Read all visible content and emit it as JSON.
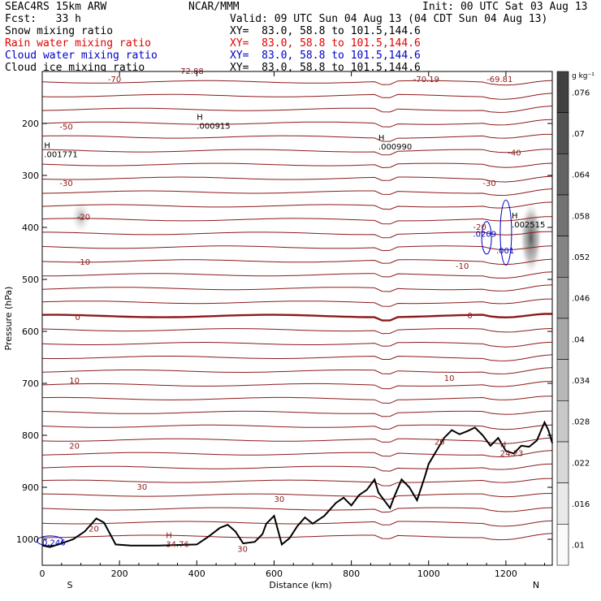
{
  "header": {
    "model": "SEAC4RS 15km ARW",
    "org": "NCAR/MMM",
    "init": "Init: 00 UTC Sat 03 Aug 13",
    "fcst": "Fcst:   33 h",
    "valid": "Valid: 09 UTC Sun 04 Aug 13 (04 CDT Sun 04 Aug 13)",
    "rows": [
      {
        "label": "Snow mixing ratio",
        "xy": "XY=  83.0, 58.8 to 101.5,144.6",
        "color": "#000000"
      },
      {
        "label": "Rain water mixing ratio",
        "xy": "XY=  83.0, 58.8 to 101.5,144.6",
        "color": "#e00000"
      },
      {
        "label": "Cloud water mixing ratio",
        "xy": "XY=  83.0, 58.8 to 101.5,144.6",
        "color": "#0000c8"
      },
      {
        "label": "Cloud ice mixing ratio",
        "xy": "XY=  83.0, 58.8 to 101.5,144.6",
        "color": "#000000"
      }
    ]
  },
  "chart_data": {
    "type": "cross-section contour",
    "xlabel": "Distance (km)",
    "ylabel": "Pressure (hPa)",
    "xlim": [
      0,
      1320
    ],
    "ylim": [
      1050,
      100
    ],
    "xticks": [
      0,
      200,
      400,
      600,
      800,
      1000,
      1200
    ],
    "yticks": [
      200,
      300,
      400,
      500,
      600,
      700,
      800,
      900,
      1000
    ],
    "x_end_labels": [
      "S",
      "N"
    ],
    "colorbar": {
      "unit": "g kg⁻¹",
      "labels": [
        ".01",
        ".016",
        ".022",
        ".028",
        ".034",
        ".04",
        ".046",
        ".052",
        ".058",
        ".064",
        ".07",
        ".076"
      ]
    },
    "temperature_contours": {
      "color": "#8b1a1a",
      "levels_degC": [
        -70,
        -60,
        -50,
        -40,
        -30,
        -20,
        -10,
        0,
        10,
        20,
        30
      ],
      "labels": [
        {
          "text": "-70",
          "x": 170,
          "p": 120
        },
        {
          "text": "-70.19",
          "x": 960,
          "p": 120
        },
        {
          "text": "-69.81",
          "x": 1150,
          "p": 120
        },
        {
          "text": "-72.88",
          "x": 350,
          "p": 105
        },
        {
          "text": "-50",
          "x": 45,
          "p": 212
        },
        {
          "text": "-40",
          "x": 1205,
          "p": 262
        },
        {
          "text": "-30",
          "x": 45,
          "p": 320
        },
        {
          "text": "-30",
          "x": 1140,
          "p": 320
        },
        {
          "text": "-20",
          "x": 90,
          "p": 385
        },
        {
          "text": "-20",
          "x": 1115,
          "p": 405
        },
        {
          "text": "-10",
          "x": 90,
          "p": 472
        },
        {
          "text": "-10",
          "x": 1070,
          "p": 480
        },
        {
          "text": "0",
          "x": 85,
          "p": 578
        },
        {
          "text": "0",
          "x": 1100,
          "p": 575
        },
        {
          "text": "10",
          "x": 70,
          "p": 700
        },
        {
          "text": "10",
          "x": 1040,
          "p": 695
        },
        {
          "text": "20",
          "x": 70,
          "p": 826
        },
        {
          "text": "20",
          "x": 1015,
          "p": 818
        },
        {
          "text": "20",
          "x": 120,
          "p": 985
        },
        {
          "text": "30",
          "x": 245,
          "p": 905
        },
        {
          "text": "30",
          "x": 600,
          "p": 928
        },
        {
          "text": "30",
          "x": 505,
          "p": 1024
        }
      ]
    },
    "extrema": [
      {
        "mark": "H",
        "value": ".000915",
        "x": 400,
        "p": 210
      },
      {
        "mark": "H",
        "value": ".000990",
        "x": 870,
        "p": 250
      },
      {
        "mark": "H",
        "value": ".001771",
        "x": 5,
        "p": 265
      },
      {
        "mark": "H",
        "value": ".002515",
        "x": 1215,
        "p": 400
      },
      {
        "mark": "H",
        "value": "24.23",
        "x": 1185,
        "p": 840
      },
      {
        "mark": "H",
        "value": "34.76",
        "x": 320,
        "p": 1015
      }
    ],
    "cloud_water": {
      "color": "#0000c8",
      "labels": [
        {
          "text": ".0209",
          "x": 1115,
          "p": 418
        },
        {
          "text": ".001",
          "x": 1175,
          "p": 450
        },
        {
          "text": "0.246",
          "x": 0,
          "p": 1012
        }
      ]
    },
    "terrain": {
      "distance_km": [
        0,
        20,
        50,
        80,
        110,
        140,
        160,
        190,
        230,
        300,
        400,
        430,
        460,
        480,
        500,
        520,
        550,
        570,
        580,
        600,
        620,
        640,
        660,
        680,
        700,
        730,
        760,
        780,
        800,
        820,
        840,
        860,
        870,
        890,
        900,
        910,
        930,
        950,
        970,
        990,
        1000,
        1020,
        1040,
        1060,
        1080,
        1100,
        1120,
        1140,
        1160,
        1180,
        1200,
        1220,
        1240,
        1260,
        1280,
        1300,
        1310,
        1320
      ],
      "pressure_hPa": [
        1012,
        1015,
        1008,
        1000,
        985,
        960,
        968,
        1010,
        1012,
        1012,
        1010,
        995,
        978,
        972,
        985,
        1008,
        1005,
        990,
        970,
        955,
        1010,
        998,
        975,
        958,
        970,
        955,
        930,
        920,
        935,
        915,
        905,
        885,
        910,
        930,
        940,
        920,
        885,
        900,
        925,
        880,
        855,
        830,
        805,
        790,
        798,
        792,
        785,
        800,
        820,
        805,
        830,
        835,
        820,
        822,
        810,
        775,
        790,
        815
      ]
    }
  }
}
